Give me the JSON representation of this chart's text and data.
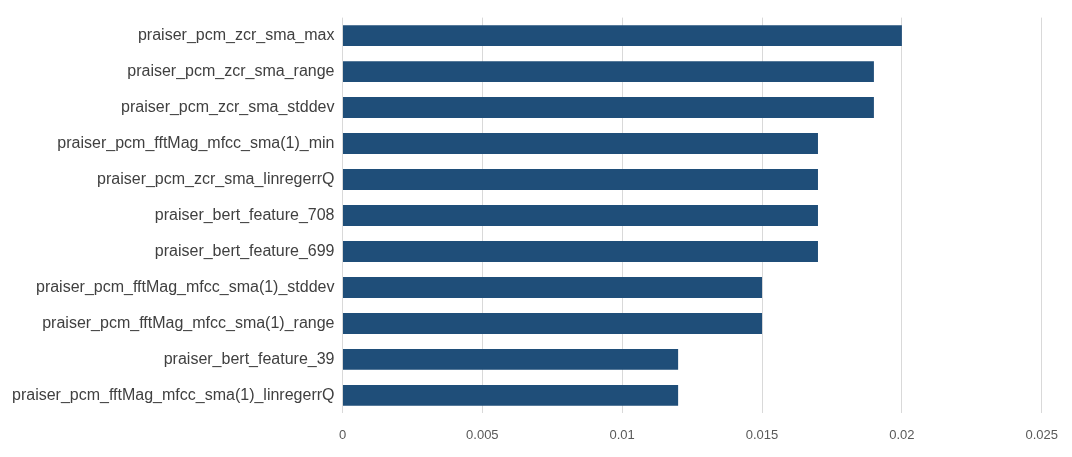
{
  "chart_data": {
    "type": "bar",
    "orientation": "horizontal",
    "categories": [
      "praiser_pcm_zcr_sma_max",
      "praiser_pcm_zcr_sma_range",
      "praiser_pcm_zcr_sma_stddev",
      "praiser_pcm_fftMag_mfcc_sma(1)_min",
      "praiser_pcm_zcr_sma_linregerrQ",
      "praiser_bert_feature_708",
      "praiser_bert_feature_699",
      "praiser_pcm_fftMag_mfcc_sma(1)_stddev",
      "praiser_pcm_fftMag_mfcc_sma(1)_range",
      "praiser_bert_feature_39",
      "praiser_pcm_fftMag_mfcc_sma(1)_linregerrQ"
    ],
    "values": [
      0.02,
      0.019,
      0.019,
      0.017,
      0.017,
      0.017,
      0.017,
      0.015,
      0.015,
      0.012,
      0.012
    ],
    "color": "#1f4e79",
    "xlim": [
      0,
      0.025
    ],
    "xticks": [
      0,
      0.005,
      0.01,
      0.015,
      0.02,
      0.025
    ],
    "grid": "x",
    "legend": false
  }
}
